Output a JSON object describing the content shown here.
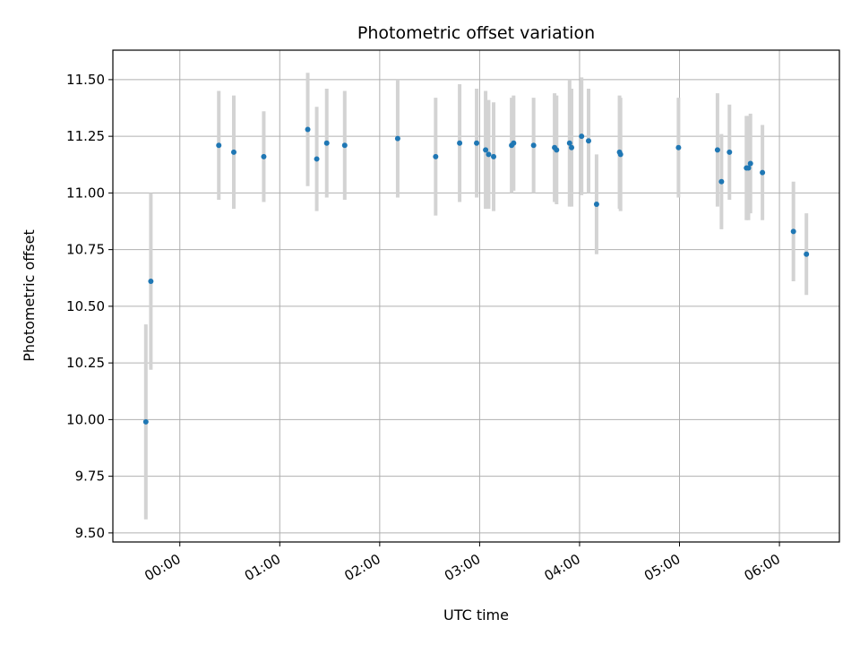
{
  "chart_data": {
    "type": "scatter",
    "title": "Photometric offset variation",
    "xlabel": "UTC time",
    "ylabel": "Photometric offset",
    "x_unit": "hours",
    "xlim": [
      -0.67,
      6.6
    ],
    "ylim": [
      9.46,
      11.63
    ],
    "x_ticks": [
      {
        "value": 0,
        "label": "00:00"
      },
      {
        "value": 1,
        "label": "01:00"
      },
      {
        "value": 2,
        "label": "02:00"
      },
      {
        "value": 3,
        "label": "03:00"
      },
      {
        "value": 4,
        "label": "04:00"
      },
      {
        "value": 5,
        "label": "05:00"
      },
      {
        "value": 6,
        "label": "06:00"
      }
    ],
    "y_ticks": [
      {
        "value": 9.5,
        "label": "9.50"
      },
      {
        "value": 9.75,
        "label": "9.75"
      },
      {
        "value": 10.0,
        "label": "10.00"
      },
      {
        "value": 10.25,
        "label": "10.25"
      },
      {
        "value": 10.5,
        "label": "10.50"
      },
      {
        "value": 10.75,
        "label": "10.75"
      },
      {
        "value": 11.0,
        "label": "11.00"
      },
      {
        "value": 11.25,
        "label": "11.25"
      },
      {
        "value": 11.5,
        "label": "11.50"
      }
    ],
    "grid": true,
    "marker_color": "#1f77b4",
    "errorbar_color": "#d3d3d3",
    "points": [
      {
        "x": -0.34,
        "y": 9.99,
        "err": 0.43
      },
      {
        "x": -0.29,
        "y": 10.61,
        "err": 0.39
      },
      {
        "x": 0.39,
        "y": 11.21,
        "err": 0.24
      },
      {
        "x": 0.54,
        "y": 11.18,
        "err": 0.25
      },
      {
        "x": 0.84,
        "y": 11.16,
        "err": 0.2
      },
      {
        "x": 1.28,
        "y": 11.28,
        "err": 0.25
      },
      {
        "x": 1.37,
        "y": 11.15,
        "err": 0.23
      },
      {
        "x": 1.47,
        "y": 11.22,
        "err": 0.24
      },
      {
        "x": 1.65,
        "y": 11.21,
        "err": 0.24
      },
      {
        "x": 2.18,
        "y": 11.24,
        "err": 0.26
      },
      {
        "x": 2.56,
        "y": 11.16,
        "err": 0.26
      },
      {
        "x": 2.8,
        "y": 11.22,
        "err": 0.26
      },
      {
        "x": 2.97,
        "y": 11.22,
        "err": 0.24
      },
      {
        "x": 3.06,
        "y": 11.19,
        "err": 0.26
      },
      {
        "x": 3.09,
        "y": 11.17,
        "err": 0.24
      },
      {
        "x": 3.14,
        "y": 11.16,
        "err": 0.24
      },
      {
        "x": 3.32,
        "y": 11.21,
        "err": 0.21
      },
      {
        "x": 3.34,
        "y": 11.22,
        "err": 0.21
      },
      {
        "x": 3.54,
        "y": 11.21,
        "err": 0.21
      },
      {
        "x": 3.75,
        "y": 11.2,
        "err": 0.24
      },
      {
        "x": 3.77,
        "y": 11.19,
        "err": 0.24
      },
      {
        "x": 3.9,
        "y": 11.22,
        "err": 0.28
      },
      {
        "x": 3.92,
        "y": 11.2,
        "err": 0.26
      },
      {
        "x": 4.02,
        "y": 11.25,
        "err": 0.26
      },
      {
        "x": 4.09,
        "y": 11.23,
        "err": 0.23
      },
      {
        "x": 4.17,
        "y": 10.95,
        "err": 0.22
      },
      {
        "x": 4.4,
        "y": 11.18,
        "err": 0.25
      },
      {
        "x": 4.41,
        "y": 11.17,
        "err": 0.25
      },
      {
        "x": 4.99,
        "y": 11.2,
        "err": 0.22
      },
      {
        "x": 5.38,
        "y": 11.19,
        "err": 0.25
      },
      {
        "x": 5.42,
        "y": 11.05,
        "err": 0.21
      },
      {
        "x": 5.5,
        "y": 11.18,
        "err": 0.21
      },
      {
        "x": 5.67,
        "y": 11.11,
        "err": 0.23
      },
      {
        "x": 5.69,
        "y": 11.11,
        "err": 0.23
      },
      {
        "x": 5.71,
        "y": 11.13,
        "err": 0.22
      },
      {
        "x": 5.83,
        "y": 11.09,
        "err": 0.21
      },
      {
        "x": 6.14,
        "y": 10.83,
        "err": 0.22
      },
      {
        "x": 6.27,
        "y": 10.73,
        "err": 0.18
      }
    ]
  }
}
